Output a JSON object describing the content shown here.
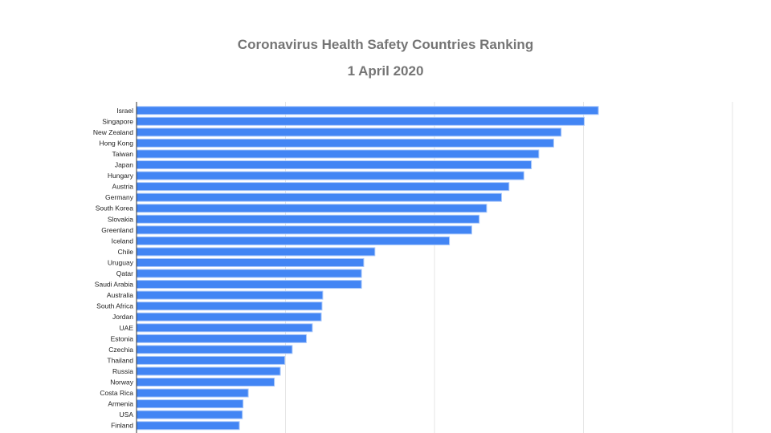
{
  "chart_data": {
    "type": "bar",
    "orientation": "horizontal",
    "title": "Coronavirus Health Safety Countries Ranking",
    "subtitle": "1 April 2020",
    "xlabel": "",
    "ylabel": "",
    "xlim": [
      0,
      800
    ],
    "gridlines": [
      200,
      400,
      600,
      800
    ],
    "grid": true,
    "colors": {
      "bar": "#4285f4",
      "bar_border": "#a8c7fa",
      "grid": "#e6e6e6",
      "axis": "#333333"
    },
    "categories": [
      "Israel",
      "Singapore",
      "New Zealand",
      "Hong Kong",
      "Taiwan",
      "Japan",
      "Hungary",
      "Austria",
      "Germany",
      "South Korea",
      "Slovakia",
      "Greenland",
      "Iceland",
      "Chile",
      "Uruguay",
      "Qatar",
      "Saudi Arabia",
      "Australia",
      "South Africa",
      "Jordan",
      "UAE",
      "Estonia",
      "Czechia",
      "Thailand",
      "Russia",
      "Norway",
      "Costa Rica",
      "Armenia",
      "USA",
      "Finland"
    ],
    "values": [
      620,
      601,
      570,
      560,
      540,
      530,
      520,
      500,
      490,
      470,
      460,
      450,
      420,
      320,
      305,
      302,
      302,
      250,
      249,
      248,
      236,
      228,
      209,
      199,
      193,
      185,
      150,
      143,
      142,
      138
    ]
  }
}
